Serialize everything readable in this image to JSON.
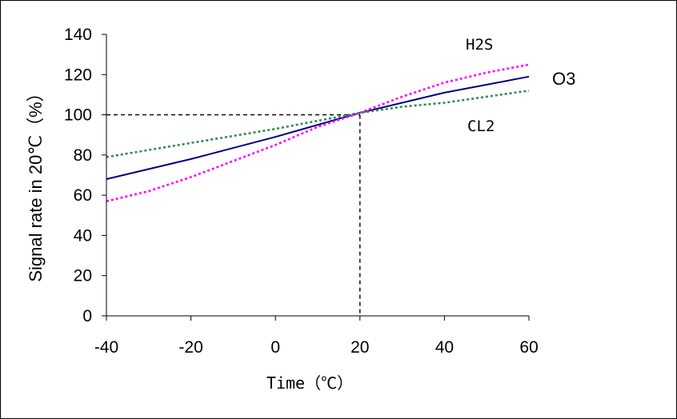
{
  "chart_data": {
    "type": "line",
    "xlabel": "Time（℃）",
    "ylabel": "Signal rate in 20℃（%）",
    "xlim": [
      -40,
      60
    ],
    "ylim": [
      0,
      140
    ],
    "x_ticks": [
      -40,
      -20,
      0,
      20,
      40,
      60
    ],
    "y_ticks": [
      0,
      20,
      40,
      60,
      80,
      100,
      120,
      140
    ],
    "grid": false,
    "reference_lines": {
      "x": 20,
      "y": 100
    },
    "series": [
      {
        "name": "O3",
        "color": "#000080",
        "style": "solid",
        "x": [
          -40,
          -20,
          0,
          20,
          40,
          50,
          60
        ],
        "y": [
          68,
          78,
          89,
          101,
          111,
          115,
          119
        ]
      },
      {
        "name": "H2S",
        "color": "#ff00ff",
        "style": "dotted",
        "x": [
          -40,
          -30,
          -20,
          -10,
          0,
          10,
          20,
          30,
          40,
          50,
          60
        ],
        "y": [
          57,
          62,
          69,
          77,
          85,
          94,
          101,
          109,
          116,
          121,
          125
        ]
      },
      {
        "name": "CL2",
        "color": "#2e8b57",
        "style": "dotted",
        "x": [
          -40,
          -20,
          0,
          10,
          20,
          30,
          40,
          50,
          60
        ],
        "y": [
          79,
          86,
          93,
          97,
          101,
          104,
          106,
          109,
          112
        ]
      }
    ]
  }
}
